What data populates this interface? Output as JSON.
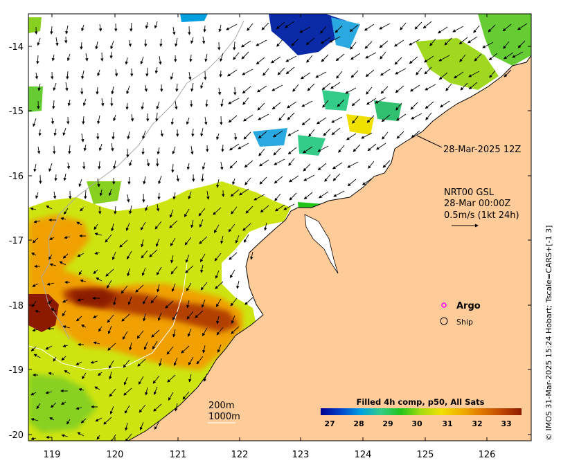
{
  "map": {
    "lon_ticks": [
      "119",
      "120",
      "121",
      "122",
      "123",
      "124",
      "125",
      "126"
    ],
    "lat_ticks": [
      "-14",
      "-15",
      "-16",
      "-17",
      "-18",
      "-19",
      "-20"
    ],
    "colors": {
      "land": "#ffcc99",
      "coast": "#000000",
      "isobath_200m": "#aaaaaa",
      "isobath_1000m": "#ffffff",
      "argo_marker": "#ff00ff"
    }
  },
  "annotations": {
    "track_label": "28-Mar-2025 12Z",
    "current_title": "NRT00 GSL",
    "current_time": "28-Mar 00:00Z",
    "current_scale": "0.5m/s (1kt 24h)",
    "isobath_200": "200m",
    "isobath_1000": "1000m"
  },
  "legend": {
    "argo_label": "Argo",
    "ship_label": "Ship"
  },
  "colorbar": {
    "title": "Filled 4h comp, p50, All Sats",
    "ticks": [
      "27",
      "28",
      "29",
      "30",
      "31",
      "32",
      "33"
    ],
    "colors": [
      "#00008f",
      "#0044cc",
      "#00a0e0",
      "#33cc88",
      "#22c41a",
      "#a6dc10",
      "#f0e000",
      "#f0b000",
      "#e07800",
      "#c04800",
      "#8c1a00"
    ]
  },
  "side_label": "© IMOS 31-Mar-2025 15:24 Hobart; Tscale=CARS+[-1 3]"
}
